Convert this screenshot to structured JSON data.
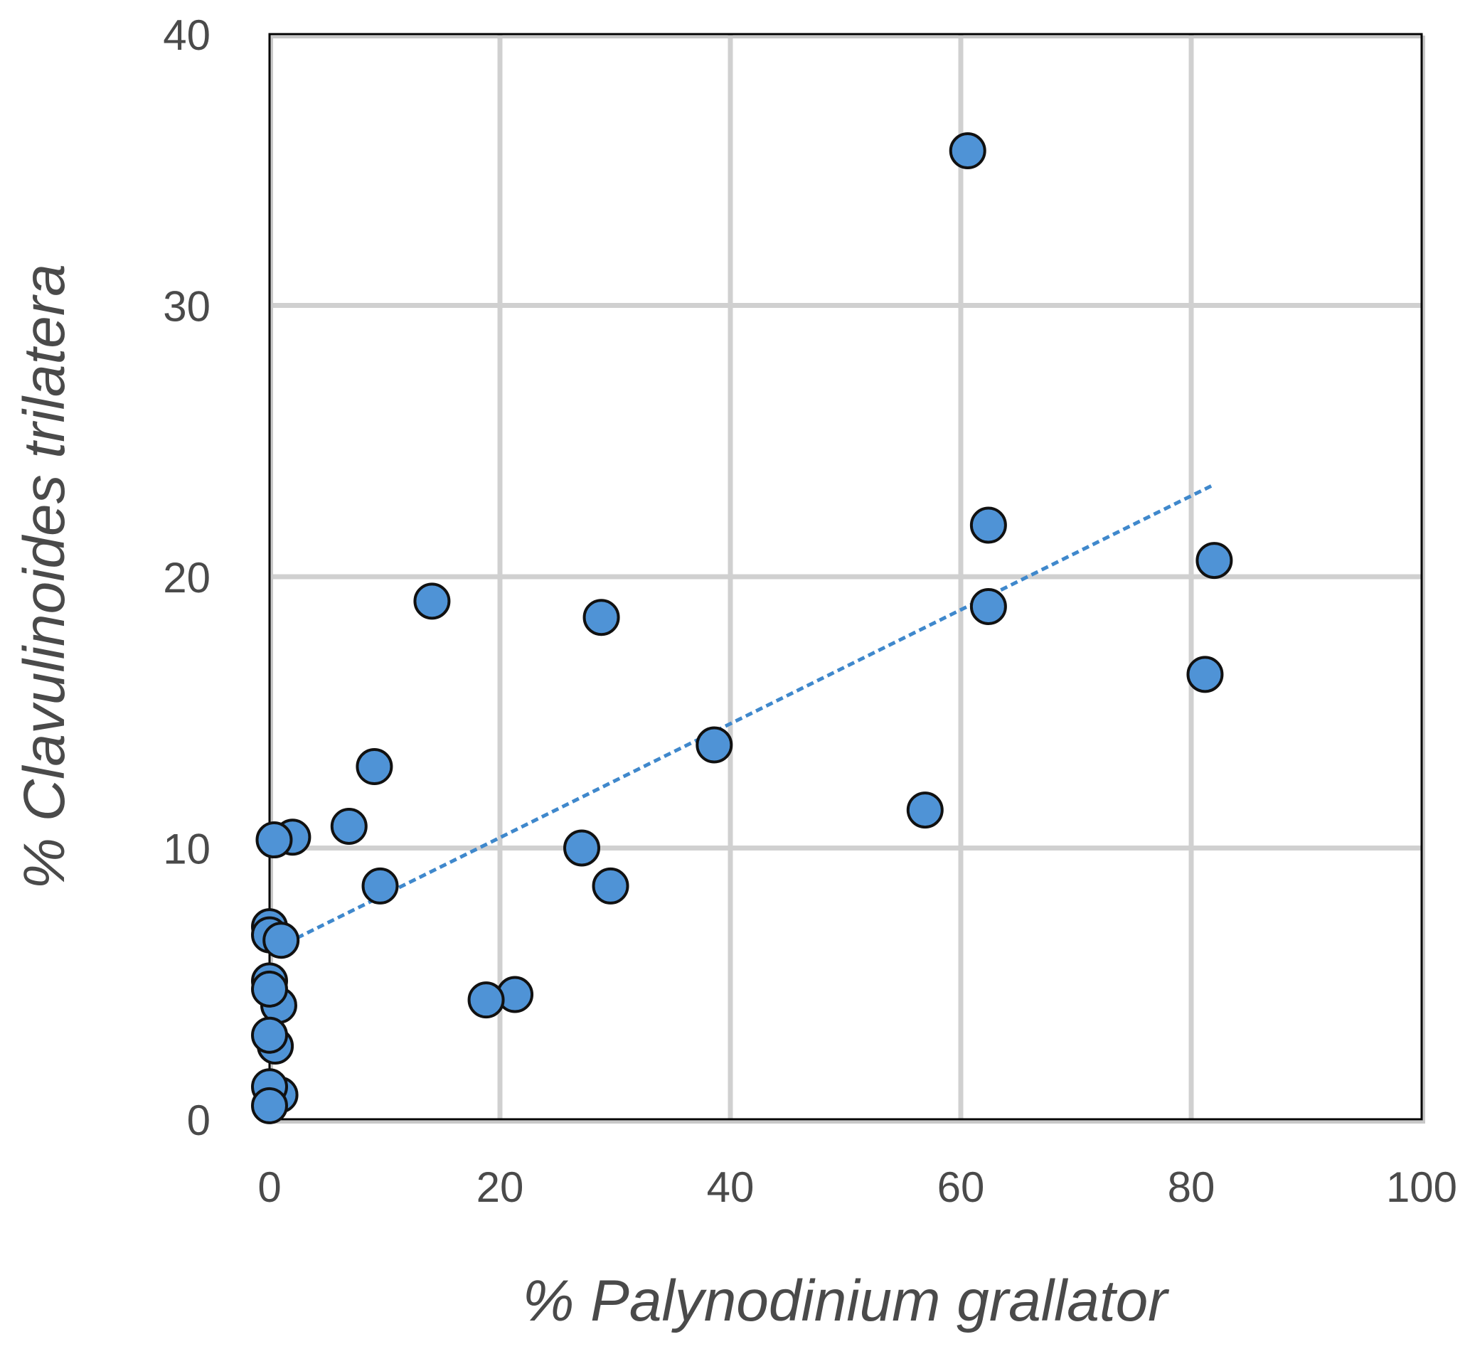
{
  "chart_data": {
    "type": "scatter",
    "title": "",
    "xlabel": "% Palynodinium grallator",
    "ylabel": "% Clavulinoides trilatera",
    "xlim": [
      0,
      100
    ],
    "ylim": [
      0,
      40
    ],
    "xticks": [
      "0",
      "20",
      "40",
      "60",
      "80",
      "100"
    ],
    "yticks": [
      "0",
      "10",
      "20",
      "30",
      "40"
    ],
    "grid": true,
    "legend": "none",
    "colors": {
      "marker": "#4f93d6",
      "marker_edge": "#111111",
      "trendline": "#3f88cc",
      "grid": "#d0d0d0"
    },
    "series": [
      {
        "points": [
          {
            "x": 60.6,
            "y": 35.7
          },
          {
            "x": 62.4,
            "y": 21.9
          },
          {
            "x": 62.4,
            "y": 18.9
          },
          {
            "x": 82.0,
            "y": 20.6
          },
          {
            "x": 81.2,
            "y": 16.4
          },
          {
            "x": 56.9,
            "y": 11.4
          },
          {
            "x": 38.6,
            "y": 13.8
          },
          {
            "x": 28.8,
            "y": 18.5
          },
          {
            "x": 27.1,
            "y": 10.0
          },
          {
            "x": 29.6,
            "y": 8.6
          },
          {
            "x": 14.1,
            "y": 19.1
          },
          {
            "x": 21.3,
            "y": 4.6
          },
          {
            "x": 18.8,
            "y": 4.4
          },
          {
            "x": 9.1,
            "y": 13.0
          },
          {
            "x": 9.6,
            "y": 8.6
          },
          {
            "x": 6.9,
            "y": 10.8
          },
          {
            "x": 2.0,
            "y": 10.4
          },
          {
            "x": 0.4,
            "y": 10.3
          },
          {
            "x": 0.0,
            "y": 7.1
          },
          {
            "x": 0.0,
            "y": 6.8
          },
          {
            "x": 1.0,
            "y": 6.6
          },
          {
            "x": 0.0,
            "y": 5.1
          },
          {
            "x": 0.8,
            "y": 4.2
          },
          {
            "x": 0.0,
            "y": 4.8
          },
          {
            "x": 0.5,
            "y": 2.7
          },
          {
            "x": 0.0,
            "y": 3.1
          },
          {
            "x": 0.9,
            "y": 0.9
          },
          {
            "x": 0.0,
            "y": 1.2
          },
          {
            "x": 0.0,
            "y": 0.5
          }
        ]
      }
    ],
    "trendline": {
      "style": "dashed",
      "x": [
        1.5,
        82.0
      ],
      "y": [
        6.5,
        23.4
      ]
    }
  }
}
